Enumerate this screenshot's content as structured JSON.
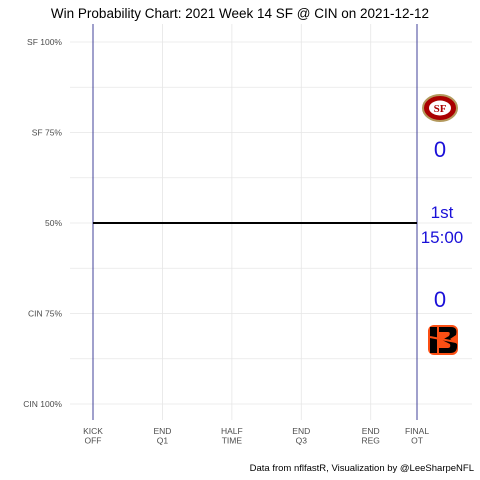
{
  "title": "Win Probability Chart: 2021 Week 14 SF @ CIN on 2021-12-12",
  "caption": "Data from nflfastR, Visualization by @LeeSharpeNFL",
  "game_state": {
    "away_score": "0",
    "home_score": "0",
    "quarter": "1st",
    "clock": "15:00"
  },
  "logos": {
    "away": {
      "icon": "sf-49ers-logo",
      "text": "SF",
      "color": "#aa0000"
    },
    "home": {
      "icon": "cin-bengals-logo",
      "color": "#fb4f14"
    }
  },
  "colors": {
    "score_text": "#1a10d8",
    "period_line": "#2e2e8f",
    "wp_line": "#000000"
  },
  "chart_data": {
    "type": "line",
    "title": "Win Probability Chart: 2021 Week 14 SF @ CIN on 2021-12-12",
    "y_tick_labels": [
      "SF 100%",
      "SF 75%",
      "50%",
      "CIN 75%",
      "CIN 100%"
    ],
    "y_tick_values": [
      1.0,
      0.75,
      0.5,
      0.25,
      0.0
    ],
    "ylim": [
      0,
      1
    ],
    "x_tick_labels": [
      [
        "KICK",
        "OFF"
      ],
      [
        "END",
        "Q1"
      ],
      [
        "HALF",
        "TIME"
      ],
      [
        "END",
        "Q3"
      ],
      [
        "END",
        "REG"
      ],
      [
        "FINAL",
        "OT"
      ]
    ],
    "x_tick_values": [
      0,
      900,
      1800,
      2700,
      3600,
      4200
    ],
    "xlim": [
      0,
      4200
    ],
    "period_markers": [
      0,
      4200
    ],
    "series": [
      {
        "x": [
          0,
          4200
        ],
        "y": [
          0.5,
          0.5
        ]
      }
    ],
    "grid": true
  }
}
